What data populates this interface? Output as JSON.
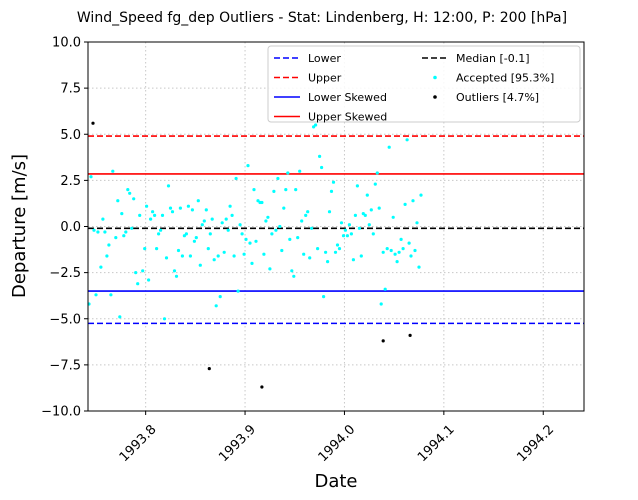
{
  "chart_data": {
    "type": "scatter",
    "title": "Wind_Speed fg_dep Outliers - Stat: Lindenberg, H: 12:00, P: 200 [hPa]",
    "xlabel": "Date",
    "ylabel": "Departure [m/s]",
    "xlim": [
      1993.742,
      1994.241
    ],
    "ylim": [
      -10.0,
      10.0
    ],
    "x_ticks": [
      1993.8,
      1993.9,
      1994.0,
      1994.1,
      1994.2
    ],
    "x_tick_labels": [
      "1993.8",
      "1993.9",
      "1994.0",
      "1994.1",
      "1994.2"
    ],
    "y_ticks": [
      -10.0,
      -7.5,
      -5.0,
      -2.5,
      0.0,
      2.5,
      5.0,
      7.5,
      10.0
    ],
    "y_tick_labels": [
      "−10.0",
      "−7.5",
      "−5.0",
      "−2.5",
      "0.0",
      "2.5",
      "5.0",
      "7.5",
      "10.0"
    ],
    "grid": true,
    "legend_position": "top-right",
    "reference_lines": [
      {
        "name": "Lower",
        "value": -5.25,
        "color": "#0000ff",
        "style": "dashed"
      },
      {
        "name": "Upper",
        "value": 4.9,
        "color": "#ff0000",
        "style": "dashed"
      },
      {
        "name": "Lower Skewed",
        "value": -3.5,
        "color": "#0000ff",
        "style": "solid"
      },
      {
        "name": "Upper Skewed",
        "value": 2.85,
        "color": "#ff0000",
        "style": "solid"
      },
      {
        "name": "Median [-0.1]",
        "value": -0.1,
        "color": "#000000",
        "style": "dashed"
      }
    ],
    "series": [
      {
        "name": "Accepted [95.3%]",
        "color": "#00ffff",
        "points": [
          [
            1993.743,
            -4.2
          ],
          [
            1993.745,
            2.7
          ],
          [
            1993.748,
            -0.2
          ],
          [
            1993.75,
            -3.7
          ],
          [
            1993.752,
            -0.3
          ],
          [
            1993.755,
            -2.2
          ],
          [
            1993.757,
            0.4
          ],
          [
            1993.759,
            -0.3
          ],
          [
            1993.761,
            -1.6
          ],
          [
            1993.763,
            -1.0
          ],
          [
            1993.765,
            -3.7
          ],
          [
            1993.767,
            3.0
          ],
          [
            1993.77,
            -0.6
          ],
          [
            1993.772,
            1.4
          ],
          [
            1993.774,
            -4.9
          ],
          [
            1993.776,
            0.7
          ],
          [
            1993.778,
            -0.5
          ],
          [
            1993.78,
            -0.3
          ],
          [
            1993.782,
            2.0
          ],
          [
            1993.784,
            1.8
          ],
          [
            1993.786,
            -0.1
          ],
          [
            1993.788,
            1.5
          ],
          [
            1993.79,
            -2.5
          ],
          [
            1993.792,
            -3.1
          ],
          [
            1993.794,
            0.6
          ],
          [
            1993.797,
            -2.4
          ],
          [
            1993.799,
            -1.2
          ],
          [
            1993.801,
            1.1
          ],
          [
            1993.803,
            -2.9
          ],
          [
            1993.805,
            0.4
          ],
          [
            1993.807,
            0.8
          ],
          [
            1993.809,
            0.6
          ],
          [
            1993.811,
            -1.2
          ],
          [
            1993.813,
            -0.4
          ],
          [
            1993.815,
            -0.2
          ],
          [
            1993.817,
            0.6
          ],
          [
            1993.819,
            -5.0
          ],
          [
            1993.821,
            -1.7
          ],
          [
            1993.823,
            2.2
          ],
          [
            1993.825,
            1.0
          ],
          [
            1993.827,
            0.8
          ],
          [
            1993.829,
            -2.4
          ],
          [
            1993.831,
            -2.7
          ],
          [
            1993.833,
            -1.3
          ],
          [
            1993.835,
            1.0
          ],
          [
            1993.837,
            -1.6
          ],
          [
            1993.839,
            -0.5
          ],
          [
            1993.841,
            -0.4
          ],
          [
            1993.843,
            1.1
          ],
          [
            1993.845,
            -1.6
          ],
          [
            1993.847,
            0.9
          ],
          [
            1993.849,
            -0.8
          ],
          [
            1993.851,
            -0.6
          ],
          [
            1993.853,
            1.4
          ],
          [
            1993.855,
            -2.1
          ],
          [
            1993.857,
            0.1
          ],
          [
            1993.859,
            0.3
          ],
          [
            1993.861,
            0.9
          ],
          [
            1993.863,
            -1.2
          ],
          [
            1993.865,
            -0.4
          ],
          [
            1993.867,
            0.4
          ],
          [
            1993.869,
            -1.8
          ],
          [
            1993.871,
            -4.3
          ],
          [
            1993.873,
            -1.6
          ],
          [
            1993.875,
            -3.8
          ],
          [
            1993.877,
            0.2
          ],
          [
            1993.879,
            -1.4
          ],
          [
            1993.881,
            0.4
          ],
          [
            1993.883,
            -0.2
          ],
          [
            1993.885,
            1.1
          ],
          [
            1993.887,
            0.6
          ],
          [
            1993.889,
            -1.6
          ],
          [
            1993.891,
            2.6
          ],
          [
            1993.893,
            -3.5
          ],
          [
            1993.895,
            0.1
          ],
          [
            1993.897,
            -0.4
          ],
          [
            1993.899,
            -1.5
          ],
          [
            1993.901,
            -0.7
          ],
          [
            1993.903,
            3.3
          ],
          [
            1993.905,
            -0.9
          ],
          [
            1993.907,
            -2.0
          ],
          [
            1993.909,
            2.0
          ],
          [
            1993.911,
            -0.8
          ],
          [
            1993.913,
            1.4
          ],
          [
            1993.915,
            1.3
          ],
          [
            1993.917,
            1.3
          ],
          [
            1993.919,
            -1.5
          ],
          [
            1993.921,
            0.3
          ],
          [
            1993.923,
            0.5
          ],
          [
            1993.925,
            -2.3
          ],
          [
            1993.927,
            -0.4
          ],
          [
            1993.929,
            1.9
          ],
          [
            1993.931,
            -0.2
          ],
          [
            1993.933,
            2.6
          ],
          [
            1993.935,
            0.0
          ],
          [
            1993.937,
            -1.3
          ],
          [
            1993.939,
            1.0
          ],
          [
            1993.941,
            2.0
          ],
          [
            1993.943,
            2.9
          ],
          [
            1993.945,
            -0.7
          ],
          [
            1993.947,
            -2.4
          ],
          [
            1993.949,
            -2.7
          ],
          [
            1993.951,
            2.0
          ],
          [
            1993.953,
            -0.6
          ],
          [
            1993.955,
            3.0
          ],
          [
            1993.957,
            0.3
          ],
          [
            1993.959,
            -1.5
          ],
          [
            1993.961,
            0.6
          ],
          [
            1993.963,
            0.8
          ],
          [
            1993.965,
            -1.7
          ],
          [
            1993.967,
            -0.1
          ],
          [
            1993.969,
            5.4
          ],
          [
            1993.971,
            5.5
          ],
          [
            1993.973,
            -1.2
          ],
          [
            1993.975,
            3.8
          ],
          [
            1993.977,
            3.2
          ],
          [
            1993.979,
            -3.8
          ],
          [
            1993.981,
            -1.4
          ],
          [
            1993.983,
            -1.9
          ],
          [
            1993.985,
            0.8
          ],
          [
            1993.987,
            1.9
          ],
          [
            1993.989,
            2.4
          ],
          [
            1993.991,
            -1.4
          ],
          [
            1993.993,
            -1.0
          ],
          [
            1993.995,
            -1.2
          ],
          [
            1993.997,
            0.2
          ],
          [
            1993.999,
            -0.5
          ],
          [
            1994.001,
            -0.2
          ],
          [
            1994.003,
            -0.5
          ],
          [
            1994.005,
            0.1
          ],
          [
            1994.007,
            -0.4
          ],
          [
            1994.009,
            -1.8
          ],
          [
            1994.011,
            0.6
          ],
          [
            1994.013,
            2.2
          ],
          [
            1994.015,
            -0.1
          ],
          [
            1994.017,
            -1.6
          ],
          [
            1994.019,
            0.7
          ],
          [
            1994.021,
            0.6
          ],
          [
            1994.023,
            1.7
          ],
          [
            1994.025,
            0.1
          ],
          [
            1994.027,
            0.9
          ],
          [
            1994.029,
            -0.4
          ],
          [
            1994.031,
            2.3
          ],
          [
            1994.033,
            2.9
          ],
          [
            1994.035,
            1.0
          ],
          [
            1994.037,
            -4.2
          ],
          [
            1994.039,
            -1.4
          ],
          [
            1994.041,
            -3.4
          ],
          [
            1994.043,
            -1.2
          ],
          [
            1994.045,
            4.3
          ],
          [
            1994.047,
            -1.3
          ],
          [
            1994.049,
            0.5
          ],
          [
            1994.051,
            -1.5
          ],
          [
            1994.053,
            -1.9
          ],
          [
            1994.055,
            -1.4
          ],
          [
            1994.057,
            -0.7
          ],
          [
            1994.059,
            -1.2
          ],
          [
            1994.061,
            1.2
          ],
          [
            1994.063,
            4.7
          ],
          [
            1994.065,
            -0.9
          ],
          [
            1994.067,
            -1.6
          ],
          [
            1994.069,
            1.4
          ],
          [
            1994.071,
            -1.3
          ],
          [
            1994.073,
            0.2
          ],
          [
            1994.075,
            -2.2
          ],
          [
            1994.077,
            1.7
          ]
        ]
      },
      {
        "name": "Outliers [4.7%]",
        "color": "#000000",
        "points": [
          [
            1993.747,
            5.6
          ],
          [
            1993.864,
            -7.7
          ],
          [
            1993.917,
            -8.7
          ],
          [
            1994.039,
            -6.2
          ],
          [
            1994.066,
            -5.9
          ]
        ]
      }
    ]
  }
}
